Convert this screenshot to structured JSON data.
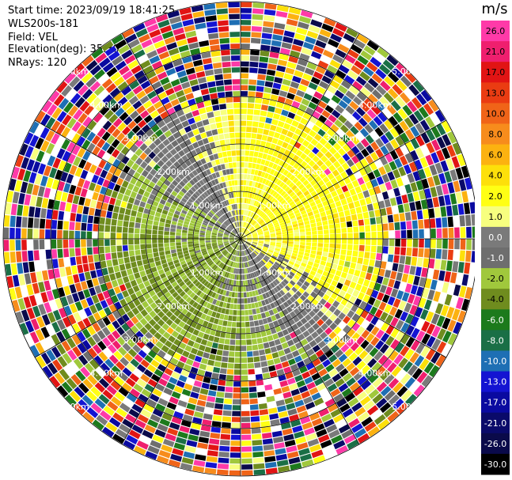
{
  "header": {
    "start_time": "Start time: 2023/09/19 18:41:25",
    "instrument": "WLS200s-181",
    "field": "Field: VEL",
    "elevation": "Elevation(deg): 35.30",
    "nrays": "NRays: 120"
  },
  "chart_data": {
    "type": "heatmap",
    "projection": "polar (PPI scan)",
    "field": "VEL",
    "colorbar_label": "m/s",
    "colorbar_ticks": [
      "26.0",
      "21.0",
      "17.0",
      "13.0",
      "10.0",
      "8.0",
      "6.0",
      "4.0",
      "2.0",
      "1.0",
      "0.0",
      "-1.0",
      "-2.0",
      "-4.0",
      "-6.0",
      "-8.0",
      "-10.0",
      "-13.0",
      "-17.0",
      "-21.0",
      "-26.0",
      "-30.0"
    ],
    "colorbar_colors": [
      "#ff3aa8",
      "#ef1f6e",
      "#e11414",
      "#ea3c12",
      "#f06418",
      "#f78c1c",
      "#fcb210",
      "#fde00a",
      "#ffff14",
      "#f7ff7f",
      "#7a7a7a",
      "#6e6e6e",
      "#a0c83c",
      "#6f8c1e",
      "#1c7a1c",
      "#1a6f46",
      "#1e6fb4",
      "#1414d2",
      "#0a0aa0",
      "#0a0a6a",
      "#0a0a4a",
      "#000000"
    ],
    "range_ring_labels": [
      "1.00km",
      "2.00km",
      "3.00km",
      "4.00km",
      "5.00km"
    ],
    "range_max_km": 5.0,
    "nrays": 120,
    "elevation_deg": 35.3
  }
}
